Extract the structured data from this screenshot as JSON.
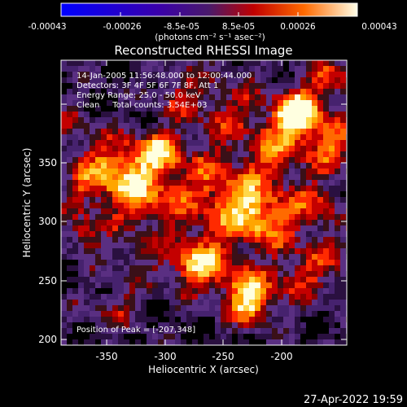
{
  "colorbar": {
    "tick_labels": [
      "-0.00043",
      "-0.00026",
      "-8.5e-05",
      "8.5e-05",
      "0.00026",
      "0.00043"
    ],
    "units_label": "(photons cm⁻² s⁻¹ asec⁻²)"
  },
  "plot": {
    "title": "Reconstructed RHESSI Image",
    "info_lines": [
      "14-Jan-2005 11:56:48.000 to 12:00:44.000",
      "Detectors: 3F 4F 5F 6F 7F 8F, Att 1",
      "Energy Range: 25.0 - 50.0 keV",
      "Clean     Total counts: 3.54E+03"
    ],
    "peak_text": "Position of Peak = [-207,348]",
    "x_axis": {
      "label": "Heliocentric X (arcsec)",
      "ticks": [
        "-350",
        "-300",
        "-250",
        "-200"
      ]
    },
    "y_axis": {
      "label": "Heliocentric Y (arcsec)",
      "ticks": [
        "200",
        "250",
        "300",
        "350"
      ]
    }
  },
  "footer": {
    "timestamp": "27-Apr-2022 19:59"
  }
}
